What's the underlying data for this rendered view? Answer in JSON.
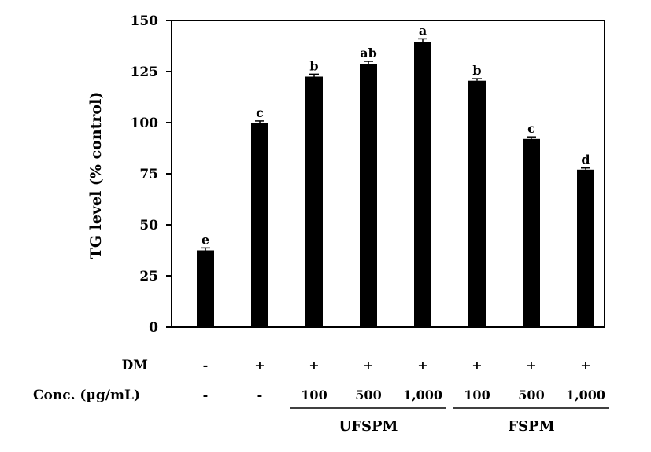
{
  "chart_data": {
    "type": "bar",
    "title": "",
    "ylabel": "TG level (% control)",
    "ylim": [
      0,
      150
    ],
    "yticks": [
      0,
      25,
      50,
      75,
      100,
      125,
      150
    ],
    "grid": false,
    "legend": "none",
    "bar_color": "#000000",
    "values": [
      37.5,
      100,
      122.5,
      128.5,
      139.5,
      120.5,
      92,
      77
    ],
    "errors": [
      1.2,
      0.8,
      1.2,
      1.5,
      1.5,
      1.0,
      1.0,
      0.8
    ],
    "significance": [
      "e",
      "c",
      "b",
      "ab",
      "a",
      "b",
      "c",
      "d"
    ],
    "rows": [
      {
        "label": "DM",
        "cells": [
          "-",
          "+",
          "+",
          "+",
          "+",
          "+",
          "+",
          "+"
        ]
      },
      {
        "label": "Conc. (µg/mL)",
        "cells": [
          "-",
          "-",
          "100",
          "500",
          "1,000",
          "100",
          "500",
          "1,000"
        ]
      }
    ],
    "groups": [
      {
        "label": "UFSPM",
        "start": 2,
        "end": 4
      },
      {
        "label": "FSPM",
        "start": 5,
        "end": 7
      }
    ]
  }
}
